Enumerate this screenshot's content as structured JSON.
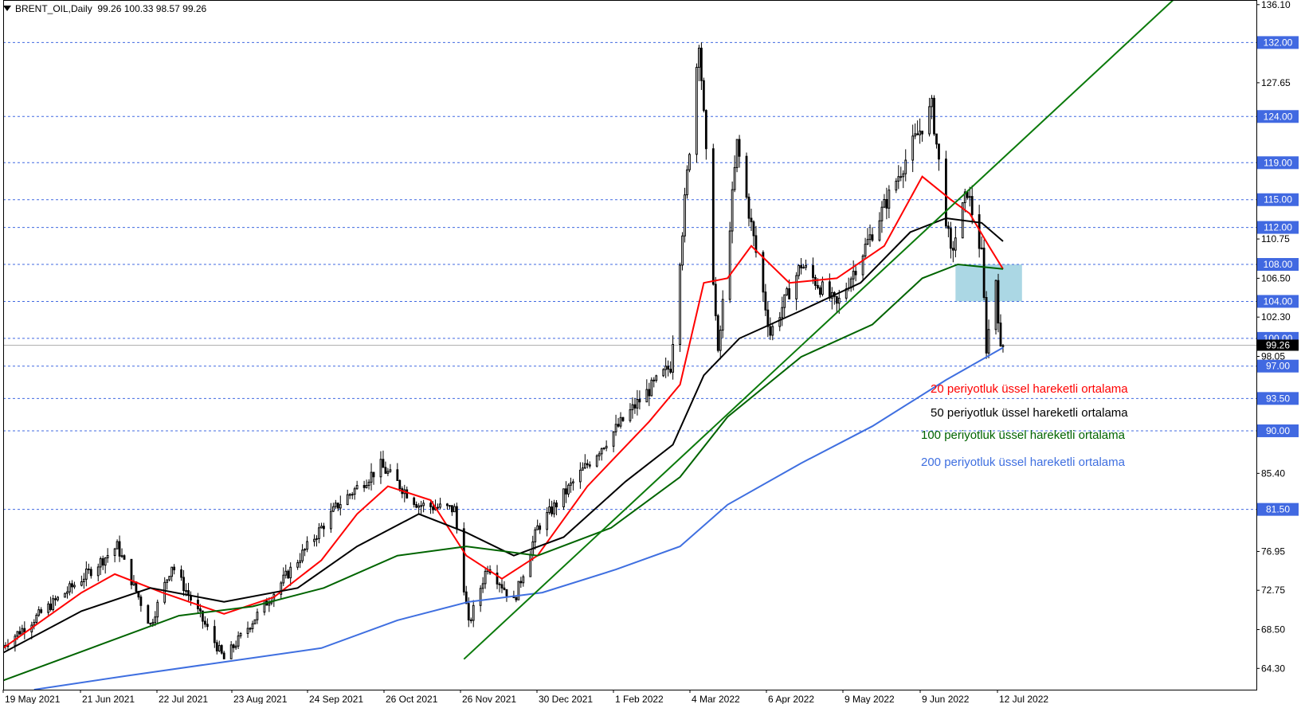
{
  "header": {
    "symbol": "BRENT_OIL,Daily",
    "ohlc": "99.26 100.33 98.57 99.26",
    "menu_icon": "triangle-down-icon"
  },
  "colors": {
    "ema20": "#ff0000",
    "ema50": "#000000",
    "ema100": "#006400",
    "ema200": "#3f6fe0",
    "trendline": "#0b7a0b",
    "zone": "#8fcadb",
    "level_line": "#4169e1",
    "candle": "#000000"
  },
  "legend": [
    {
      "label": "20 periyotluk üssel hareketli ortalama",
      "color": "#ff0000"
    },
    {
      "label": "50 periyotluk üssel hareketli ortalama",
      "color": "#000000"
    },
    {
      "label": "100 periyotluk üssel hareketli ortalama",
      "color": "#006400"
    },
    {
      "label": "200 periyotluk üssel hareketli ortalama",
      "color": "#3f6fe0"
    }
  ],
  "chart_data": {
    "type": "candlestick",
    "symbol": "BRENT_OIL",
    "timeframe": "Daily",
    "last_price": 99.26,
    "x_labels": [
      "19 May 2021",
      "21 Jun 2021",
      "22 Jul 2021",
      "23 Aug 2021",
      "24 Sep 2021",
      "26 Oct 2021",
      "26 Nov 2021",
      "30 Dec 2021",
      "1 Feb 2022",
      "4 Mar 2022",
      "6 Apr 2022",
      "9 May 2022",
      "9 Jun 2022",
      "12 Jul 2022"
    ],
    "y_ticks": [
      136.1,
      127.65,
      110.75,
      106.5,
      102.3,
      98.05,
      85.4,
      76.95,
      72.75,
      68.5,
      64.3
    ],
    "ylim": [
      62.0,
      136.6
    ],
    "horizontal_levels": [
      132.0,
      124.0,
      119.0,
      115.0,
      112.0,
      108.0,
      104.0,
      100.0,
      97.0,
      93.5,
      90.0,
      81.5
    ],
    "resistance_zone": {
      "from_date": "2022-06-24",
      "to_date": "2022-07-22",
      "low": 104.0,
      "high": 108.0
    },
    "trendline": {
      "start": {
        "date": "2021-11-29",
        "price": 65.3
      },
      "through": {
        "date": "2022-06-21",
        "price": 114.0
      }
    },
    "candles": [
      {
        "date": "2021-05-19",
        "price": 66.8
      },
      {
        "date": "2021-06-21",
        "price": 74.0
      },
      {
        "date": "2021-07-06",
        "price": 77.5
      },
      {
        "date": "2021-07-20",
        "price": 69.0
      },
      {
        "date": "2021-07-29",
        "price": 75.5
      },
      {
        "date": "2021-08-20",
        "price": 65.3
      },
      {
        "date": "2021-09-10",
        "price": 72.5
      },
      {
        "date": "2021-10-07",
        "price": 82.0
      },
      {
        "date": "2021-10-25",
        "price": 86.2
      },
      {
        "date": "2021-11-10",
        "price": 82.0
      },
      {
        "date": "2021-11-25",
        "price": 81.5
      },
      {
        "date": "2021-12-01",
        "price": 69.0
      },
      {
        "date": "2021-12-09",
        "price": 75.5
      },
      {
        "date": "2021-12-20",
        "price": 71.5
      },
      {
        "date": "2021-12-30",
        "price": 79.5
      },
      {
        "date": "2022-01-25",
        "price": 88.0
      },
      {
        "date": "2022-02-10",
        "price": 93.0
      },
      {
        "date": "2022-02-24",
        "price": 97.0
      },
      {
        "date": "2022-03-08",
        "price": 132.5
      },
      {
        "date": "2022-03-16",
        "price": 98.0
      },
      {
        "date": "2022-03-24",
        "price": 121.0
      },
      {
        "date": "2022-04-07",
        "price": 100.5
      },
      {
        "date": "2022-04-20",
        "price": 108.0
      },
      {
        "date": "2022-05-05",
        "price": 103.5
      },
      {
        "date": "2022-05-20",
        "price": 111.5
      },
      {
        "date": "2022-06-06",
        "price": 121.0
      },
      {
        "date": "2022-06-14",
        "price": 125.0
      },
      {
        "date": "2022-06-22",
        "price": 109.0
      },
      {
        "date": "2022-06-29",
        "price": 116.0
      },
      {
        "date": "2022-07-05",
        "price": 109.0
      },
      {
        "date": "2022-07-07",
        "price": 99.0
      },
      {
        "date": "2022-07-11",
        "price": 106.5
      },
      {
        "date": "2022-07-13",
        "price": 98.5
      },
      {
        "date": "2022-07-14",
        "price": 99.26
      }
    ],
    "series": [
      {
        "name": "20 periyotluk üssel hareketli ortalama",
        "color": "#ff0000",
        "points": [
          [
            "2021-05-19",
            66.5
          ],
          [
            "2021-06-21",
            72.5
          ],
          [
            "2021-07-05",
            74.5
          ],
          [
            "2021-07-25",
            72.5
          ],
          [
            "2021-08-20",
            70.2
          ],
          [
            "2021-09-10",
            72.0
          ],
          [
            "2021-09-30",
            76.0
          ],
          [
            "2021-10-15",
            81.0
          ],
          [
            "2021-10-28",
            84.0
          ],
          [
            "2021-11-15",
            82.5
          ],
          [
            "2021-11-30",
            76.5
          ],
          [
            "2021-12-15",
            74.0
          ],
          [
            "2021-12-30",
            76.5
          ],
          [
            "2022-01-20",
            84.0
          ],
          [
            "2022-02-15",
            91.0
          ],
          [
            "2022-02-28",
            95.0
          ],
          [
            "2022-03-10",
            106.0
          ],
          [
            "2022-03-20",
            106.5
          ],
          [
            "2022-03-30",
            110.0
          ],
          [
            "2022-04-15",
            106.0
          ],
          [
            "2022-05-05",
            106.5
          ],
          [
            "2022-05-25",
            110.0
          ],
          [
            "2022-06-10",
            117.5
          ],
          [
            "2022-06-22",
            115.0
          ],
          [
            "2022-06-30",
            113.5
          ],
          [
            "2022-07-08",
            110.0
          ],
          [
            "2022-07-14",
            107.5
          ]
        ]
      },
      {
        "name": "50 periyotluk üssel hareketli ortalama",
        "color": "#000000",
        "points": [
          [
            "2021-05-19",
            66.0
          ],
          [
            "2021-06-21",
            70.5
          ],
          [
            "2021-07-20",
            73.0
          ],
          [
            "2021-08-20",
            71.5
          ],
          [
            "2021-09-20",
            73.0
          ],
          [
            "2021-10-15",
            77.5
          ],
          [
            "2021-11-10",
            81.0
          ],
          [
            "2021-11-30",
            79.0
          ],
          [
            "2021-12-20",
            76.5
          ],
          [
            "2022-01-10",
            78.5
          ],
          [
            "2022-02-05",
            84.5
          ],
          [
            "2022-02-25",
            88.5
          ],
          [
            "2022-03-10",
            96.0
          ],
          [
            "2022-03-25",
            100.0
          ],
          [
            "2022-04-20",
            103.0
          ],
          [
            "2022-05-15",
            106.0
          ],
          [
            "2022-06-05",
            111.5
          ],
          [
            "2022-06-20",
            113.0
          ],
          [
            "2022-07-05",
            112.5
          ],
          [
            "2022-07-14",
            110.5
          ]
        ]
      },
      {
        "name": "100 periyotluk üssel hareketli ortalama",
        "color": "#006400",
        "points": [
          [
            "2021-05-19",
            63.0
          ],
          [
            "2021-06-25",
            66.5
          ],
          [
            "2021-08-01",
            70.0
          ],
          [
            "2021-09-01",
            71.0
          ],
          [
            "2021-10-01",
            73.0
          ],
          [
            "2021-11-01",
            76.5
          ],
          [
            "2021-11-30",
            77.5
          ],
          [
            "2021-12-30",
            76.5
          ],
          [
            "2022-01-30",
            79.5
          ],
          [
            "2022-02-28",
            85.0
          ],
          [
            "2022-03-20",
            91.5
          ],
          [
            "2022-04-20",
            98.0
          ],
          [
            "2022-05-20",
            101.5
          ],
          [
            "2022-06-10",
            106.5
          ],
          [
            "2022-06-25",
            108.0
          ],
          [
            "2022-07-14",
            107.5
          ]
        ]
      },
      {
        "name": "200 periyotluk üssel hareketli ortalama",
        "color": "#3f6fe0",
        "points": [
          [
            "2021-06-01",
            62.0
          ],
          [
            "2021-07-10",
            63.5
          ],
          [
            "2021-08-20",
            65.0
          ],
          [
            "2021-09-30",
            66.5
          ],
          [
            "2021-11-01",
            69.5
          ],
          [
            "2021-12-01",
            71.5
          ],
          [
            "2022-01-01",
            72.5
          ],
          [
            "2022-02-01",
            75.0
          ],
          [
            "2022-02-28",
            77.5
          ],
          [
            "2022-03-20",
            82.0
          ],
          [
            "2022-04-20",
            86.5
          ],
          [
            "2022-05-20",
            90.5
          ],
          [
            "2022-06-20",
            95.5
          ],
          [
            "2022-07-14",
            99.0
          ]
        ]
      }
    ]
  }
}
